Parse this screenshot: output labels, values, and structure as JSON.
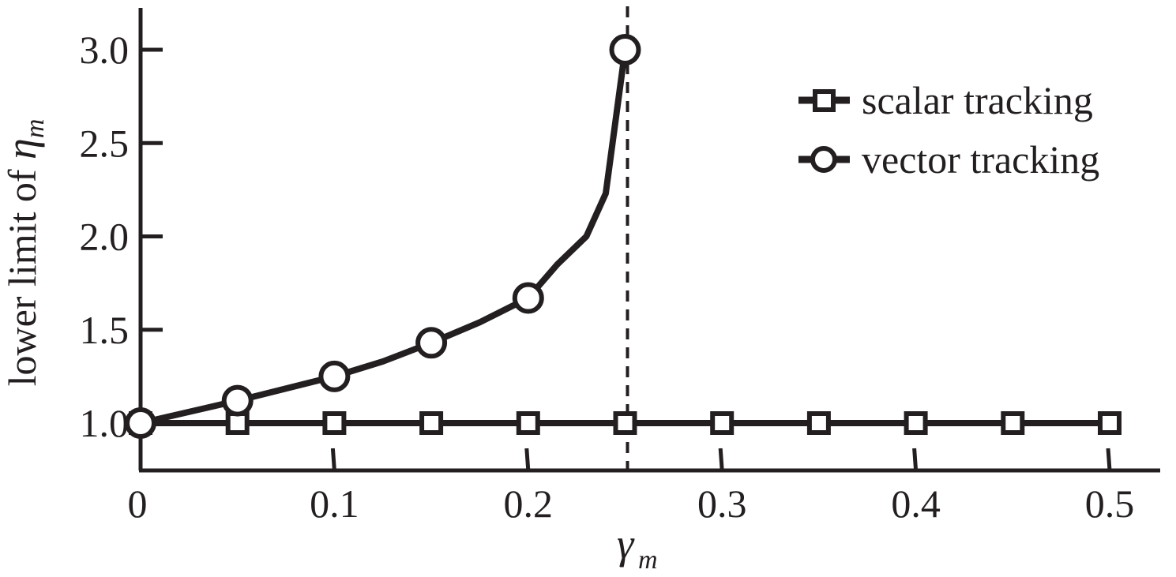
{
  "chart_data": {
    "type": "line",
    "x_ticks": [
      "0",
      "0.1",
      "0.2",
      "0.3",
      "0.4",
      "0.5"
    ],
    "y_ticks": [
      "1.0",
      "1.5",
      "2.0",
      "2.5",
      "3.0"
    ],
    "xlabel": {
      "symbol": "γ",
      "subscript": "m"
    },
    "ylabel": {
      "prefix": "lower limit of ",
      "symbol": "η",
      "subscript": "m"
    },
    "xlim": [
      0,
      0.52
    ],
    "ylim": [
      0.75,
      3.23
    ],
    "vertical_reference_line": {
      "x": 0.25,
      "style": "dashed"
    },
    "legend": {
      "position": "top-right"
    },
    "line_color": "#231f20",
    "series": [
      {
        "name": "scalar tracking",
        "marker": "square",
        "x": [
          0,
          0.05,
          0.1,
          0.15,
          0.2,
          0.25,
          0.3,
          0.35,
          0.4,
          0.45,
          0.5
        ],
        "y": [
          1.0,
          1.0,
          1.0,
          1.0,
          1.0,
          1.0,
          1.0,
          1.0,
          1.0,
          1.0,
          1.0
        ],
        "curve_x": [
          0,
          0.5
        ],
        "curve_y": [
          1.0,
          1.0
        ]
      },
      {
        "name": "vector tracking",
        "marker": "circle",
        "x": [
          0,
          0.05,
          0.1,
          0.15,
          0.2,
          0.25
        ],
        "y": [
          1.0,
          1.12,
          1.25,
          1.43,
          1.67,
          3.0
        ],
        "curve_x": [
          0,
          0.05,
          0.1,
          0.125,
          0.15,
          0.175,
          0.2,
          0.215,
          0.23,
          0.24,
          0.25
        ],
        "curve_y": [
          1.0,
          1.12,
          1.25,
          1.33,
          1.43,
          1.54,
          1.67,
          1.85,
          2.0,
          2.23,
          3.0
        ]
      }
    ]
  }
}
